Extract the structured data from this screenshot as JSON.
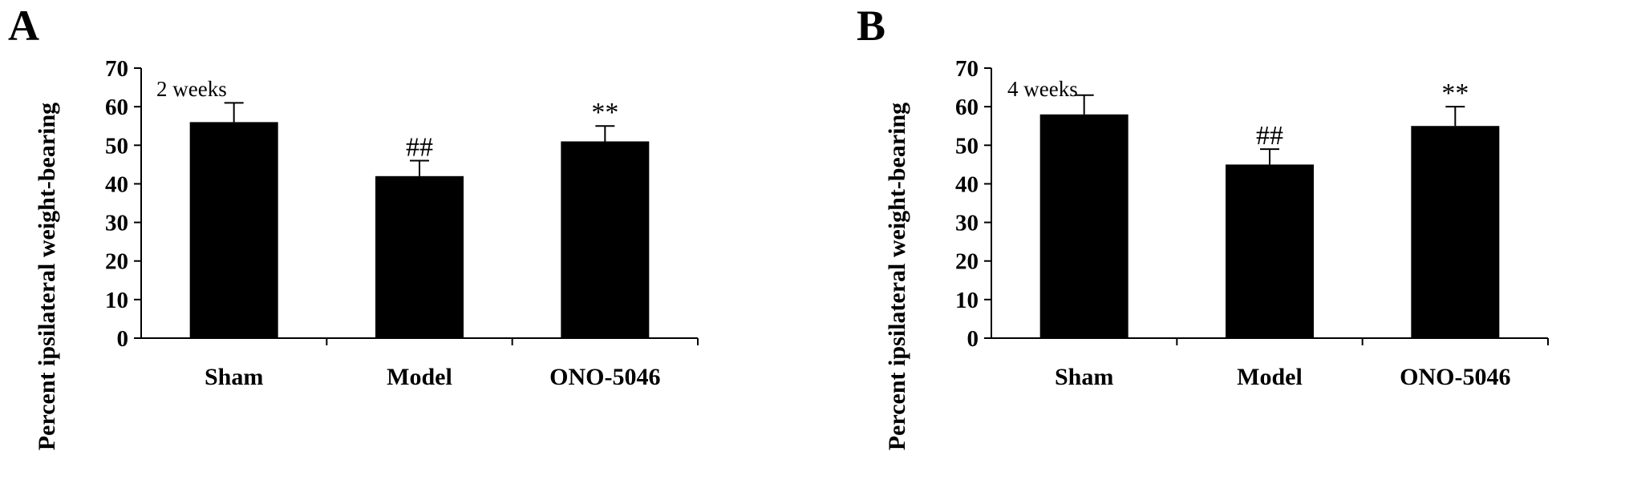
{
  "chart_data": [
    {
      "type": "bar",
      "panel_label": "A",
      "annotation": "2 weeks",
      "ylabel": "Percent ipsilateral weight-bearing",
      "xlabel": "",
      "ylim": [
        0,
        70
      ],
      "yticks": [
        0,
        10,
        20,
        30,
        40,
        50,
        60,
        70
      ],
      "categories": [
        "Sham",
        "Model",
        "ONO-5046"
      ],
      "values": [
        56,
        42,
        51
      ],
      "errors": [
        5,
        4,
        4
      ],
      "significance": [
        "",
        "##",
        "**"
      ],
      "bar_color": "#000000"
    },
    {
      "type": "bar",
      "panel_label": "B",
      "annotation": "4 weeks",
      "ylabel": "Percent ipsilateral weight-bearing",
      "xlabel": "",
      "ylim": [
        0,
        70
      ],
      "yticks": [
        0,
        10,
        20,
        30,
        40,
        50,
        60,
        70
      ],
      "categories": [
        "Sham",
        "Model",
        "ONO-5046"
      ],
      "values": [
        58,
        45,
        55
      ],
      "errors": [
        5,
        4,
        5
      ],
      "significance": [
        "",
        "##",
        "**"
      ],
      "bar_color": "#000000"
    }
  ]
}
